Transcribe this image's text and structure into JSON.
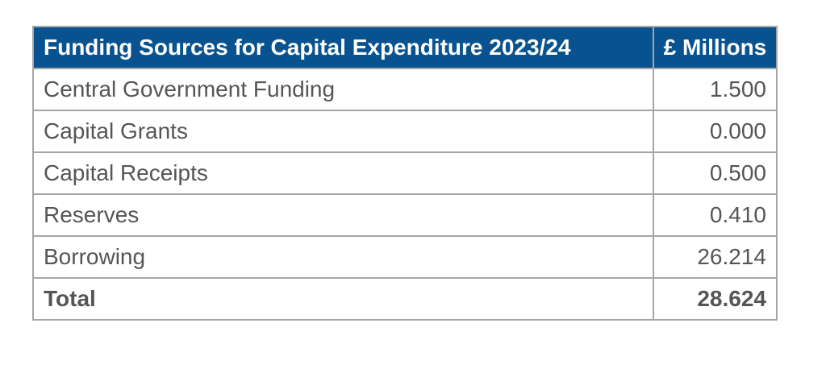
{
  "table": {
    "headers": [
      "Funding Sources for Capital Expenditure 2023/24",
      "£ Millions"
    ],
    "rows": [
      {
        "label": "Central Government Funding",
        "value": "1.500"
      },
      {
        "label": "Capital Grants",
        "value": "0.000"
      },
      {
        "label": "Capital Receipts",
        "value": "0.500"
      },
      {
        "label": "Reserves",
        "value": "0.410"
      },
      {
        "label": "Borrowing",
        "value": "26.214"
      }
    ],
    "total": {
      "label": "Total",
      "value": "28.624"
    }
  },
  "colors": {
    "header_background": "#08538f",
    "header_text": "#ffffff",
    "body_text": "#555555",
    "border": "#a6a6a6"
  }
}
